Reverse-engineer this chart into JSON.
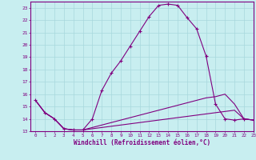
{
  "xlabel": "Windchill (Refroidissement éolien,°C)",
  "x_ticks": [
    0,
    1,
    2,
    3,
    4,
    5,
    6,
    7,
    8,
    9,
    10,
    11,
    12,
    13,
    14,
    15,
    16,
    17,
    18,
    19,
    20,
    21,
    22,
    23
  ],
  "ylim": [
    13,
    23.5
  ],
  "xlim": [
    -0.5,
    23
  ],
  "bg_color": "#c8eef0",
  "line_color": "#800080",
  "grid_color": "#a8d8dc",
  "series1": [
    15.5,
    14.5,
    14.0,
    13.2,
    13.1,
    13.1,
    14.0,
    16.3,
    17.7,
    18.7,
    19.9,
    21.1,
    22.3,
    23.2,
    23.3,
    23.2,
    22.2,
    21.3,
    19.1,
    15.2,
    14.0,
    13.9,
    14.0,
    13.9
  ],
  "series2": [
    15.5,
    14.5,
    14.0,
    13.2,
    13.1,
    13.1,
    13.3,
    13.5,
    13.7,
    13.9,
    14.1,
    14.3,
    14.5,
    14.7,
    14.9,
    15.1,
    15.3,
    15.5,
    15.7,
    15.8,
    16.0,
    15.2,
    14.0,
    13.9
  ],
  "series3": [
    15.5,
    14.5,
    14.0,
    13.2,
    13.1,
    13.1,
    13.2,
    13.3,
    13.4,
    13.5,
    13.6,
    13.7,
    13.8,
    13.9,
    14.0,
    14.1,
    14.2,
    14.3,
    14.4,
    14.5,
    14.6,
    14.7,
    14.0,
    13.9
  ],
  "yticks": [
    13,
    14,
    15,
    16,
    17,
    18,
    19,
    20,
    21,
    22,
    23
  ]
}
